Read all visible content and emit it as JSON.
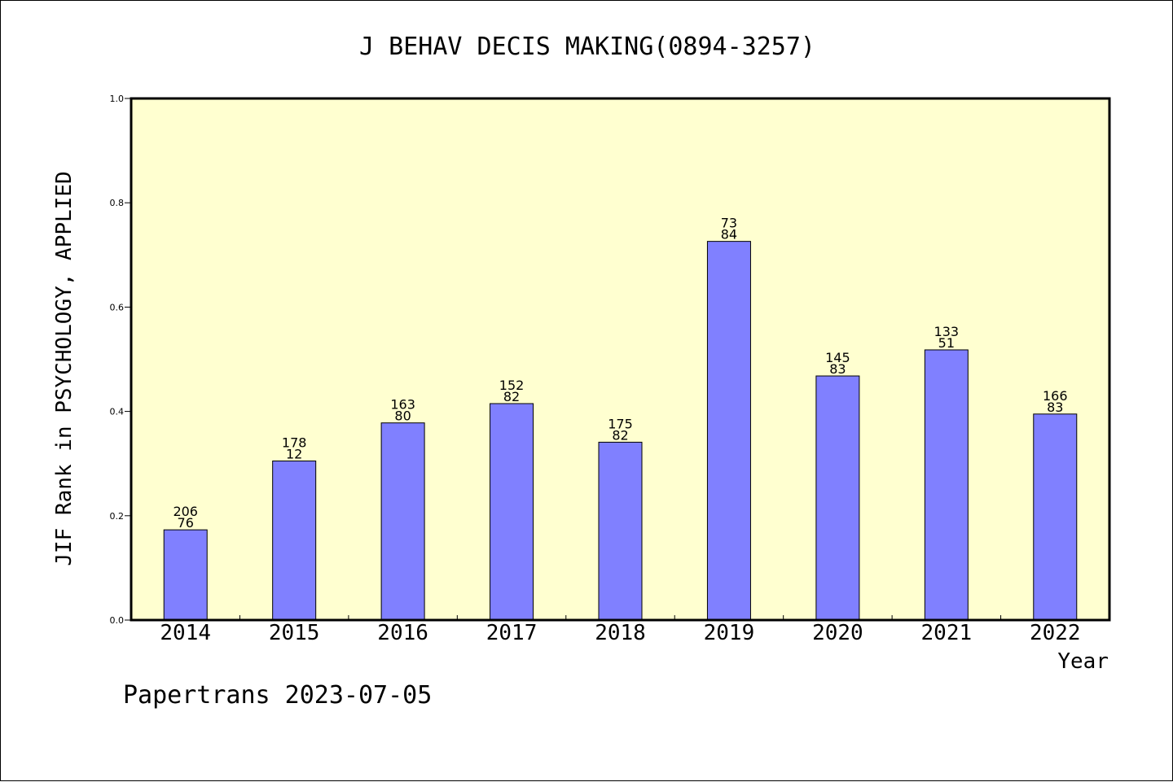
{
  "chart_data": {
    "type": "bar",
    "title": "J BEHAV DECIS MAKING(0894-3257)",
    "xlabel": "Year",
    "ylabel": "JIF Rank in PSYCHOLOGY, APPLIED",
    "ylim": [
      0.0,
      1.0
    ],
    "yticks": [
      "0.0",
      "0.2",
      "0.4",
      "0.6",
      "0.8",
      "1.0"
    ],
    "categories": [
      "2014",
      "2015",
      "2016",
      "2017",
      "2018",
      "2019",
      "2020",
      "2021",
      "2022"
    ],
    "values": [
      0.173,
      0.305,
      0.378,
      0.415,
      0.341,
      0.726,
      0.468,
      0.518,
      0.395
    ],
    "label_top": [
      "206",
      "178",
      "163",
      "152",
      "175",
      "73",
      "145",
      "133",
      "166"
    ],
    "label_bottom": [
      "76",
      "12",
      "80",
      "82",
      "82",
      "84",
      "83",
      "51",
      "83"
    ],
    "grid": false,
    "colors": {
      "bar": "#8080ff",
      "plot_bg": "#ffffd0"
    }
  },
  "footer": {
    "text": "Papertrans 2023-07-05"
  }
}
